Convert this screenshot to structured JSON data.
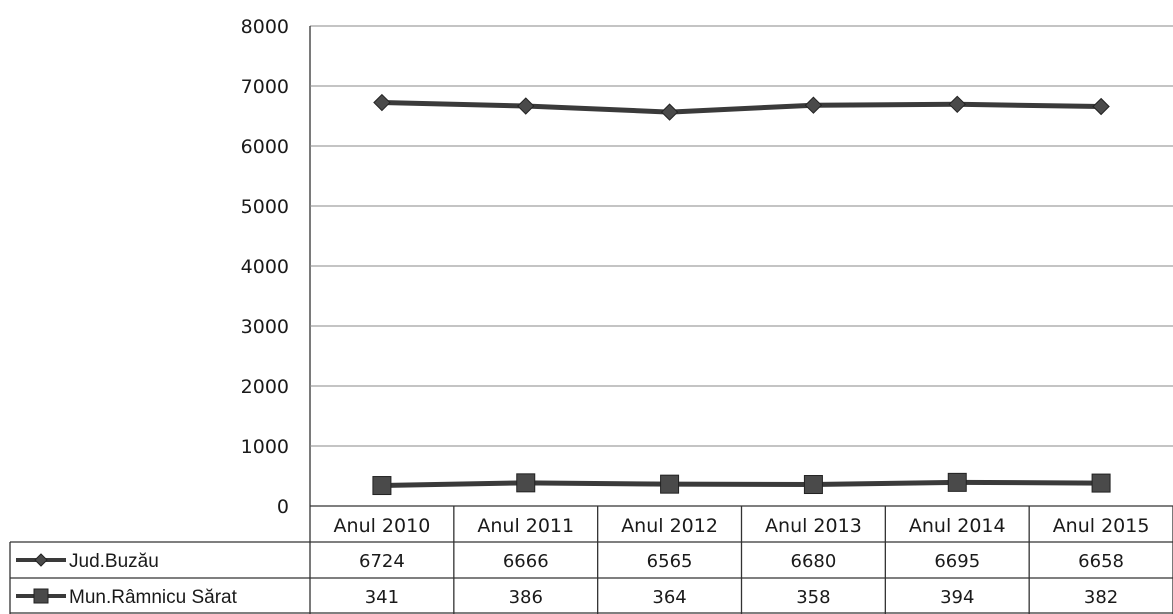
{
  "chart_data": {
    "type": "line",
    "categories": [
      "Anul 2010",
      "Anul 2011",
      "Anul 2012",
      "Anul 2013",
      "Anul 2014",
      "Anul 2015"
    ],
    "series": [
      {
        "name": "Jud.Buzău",
        "marker": "diamond",
        "values": [
          6724,
          6666,
          6565,
          6680,
          6695,
          6658
        ]
      },
      {
        "name": "Mun.Râmnicu Sărat",
        "marker": "square",
        "values": [
          341,
          386,
          364,
          358,
          394,
          382
        ]
      }
    ],
    "ylim": [
      0,
      8000
    ],
    "yticks": [
      0,
      1000,
      2000,
      3000,
      4000,
      5000,
      6000,
      7000,
      8000
    ],
    "grid": true,
    "legend": "data-table-left",
    "line_color": "#3a3a3a",
    "marker_color": "#4a4a4a"
  }
}
